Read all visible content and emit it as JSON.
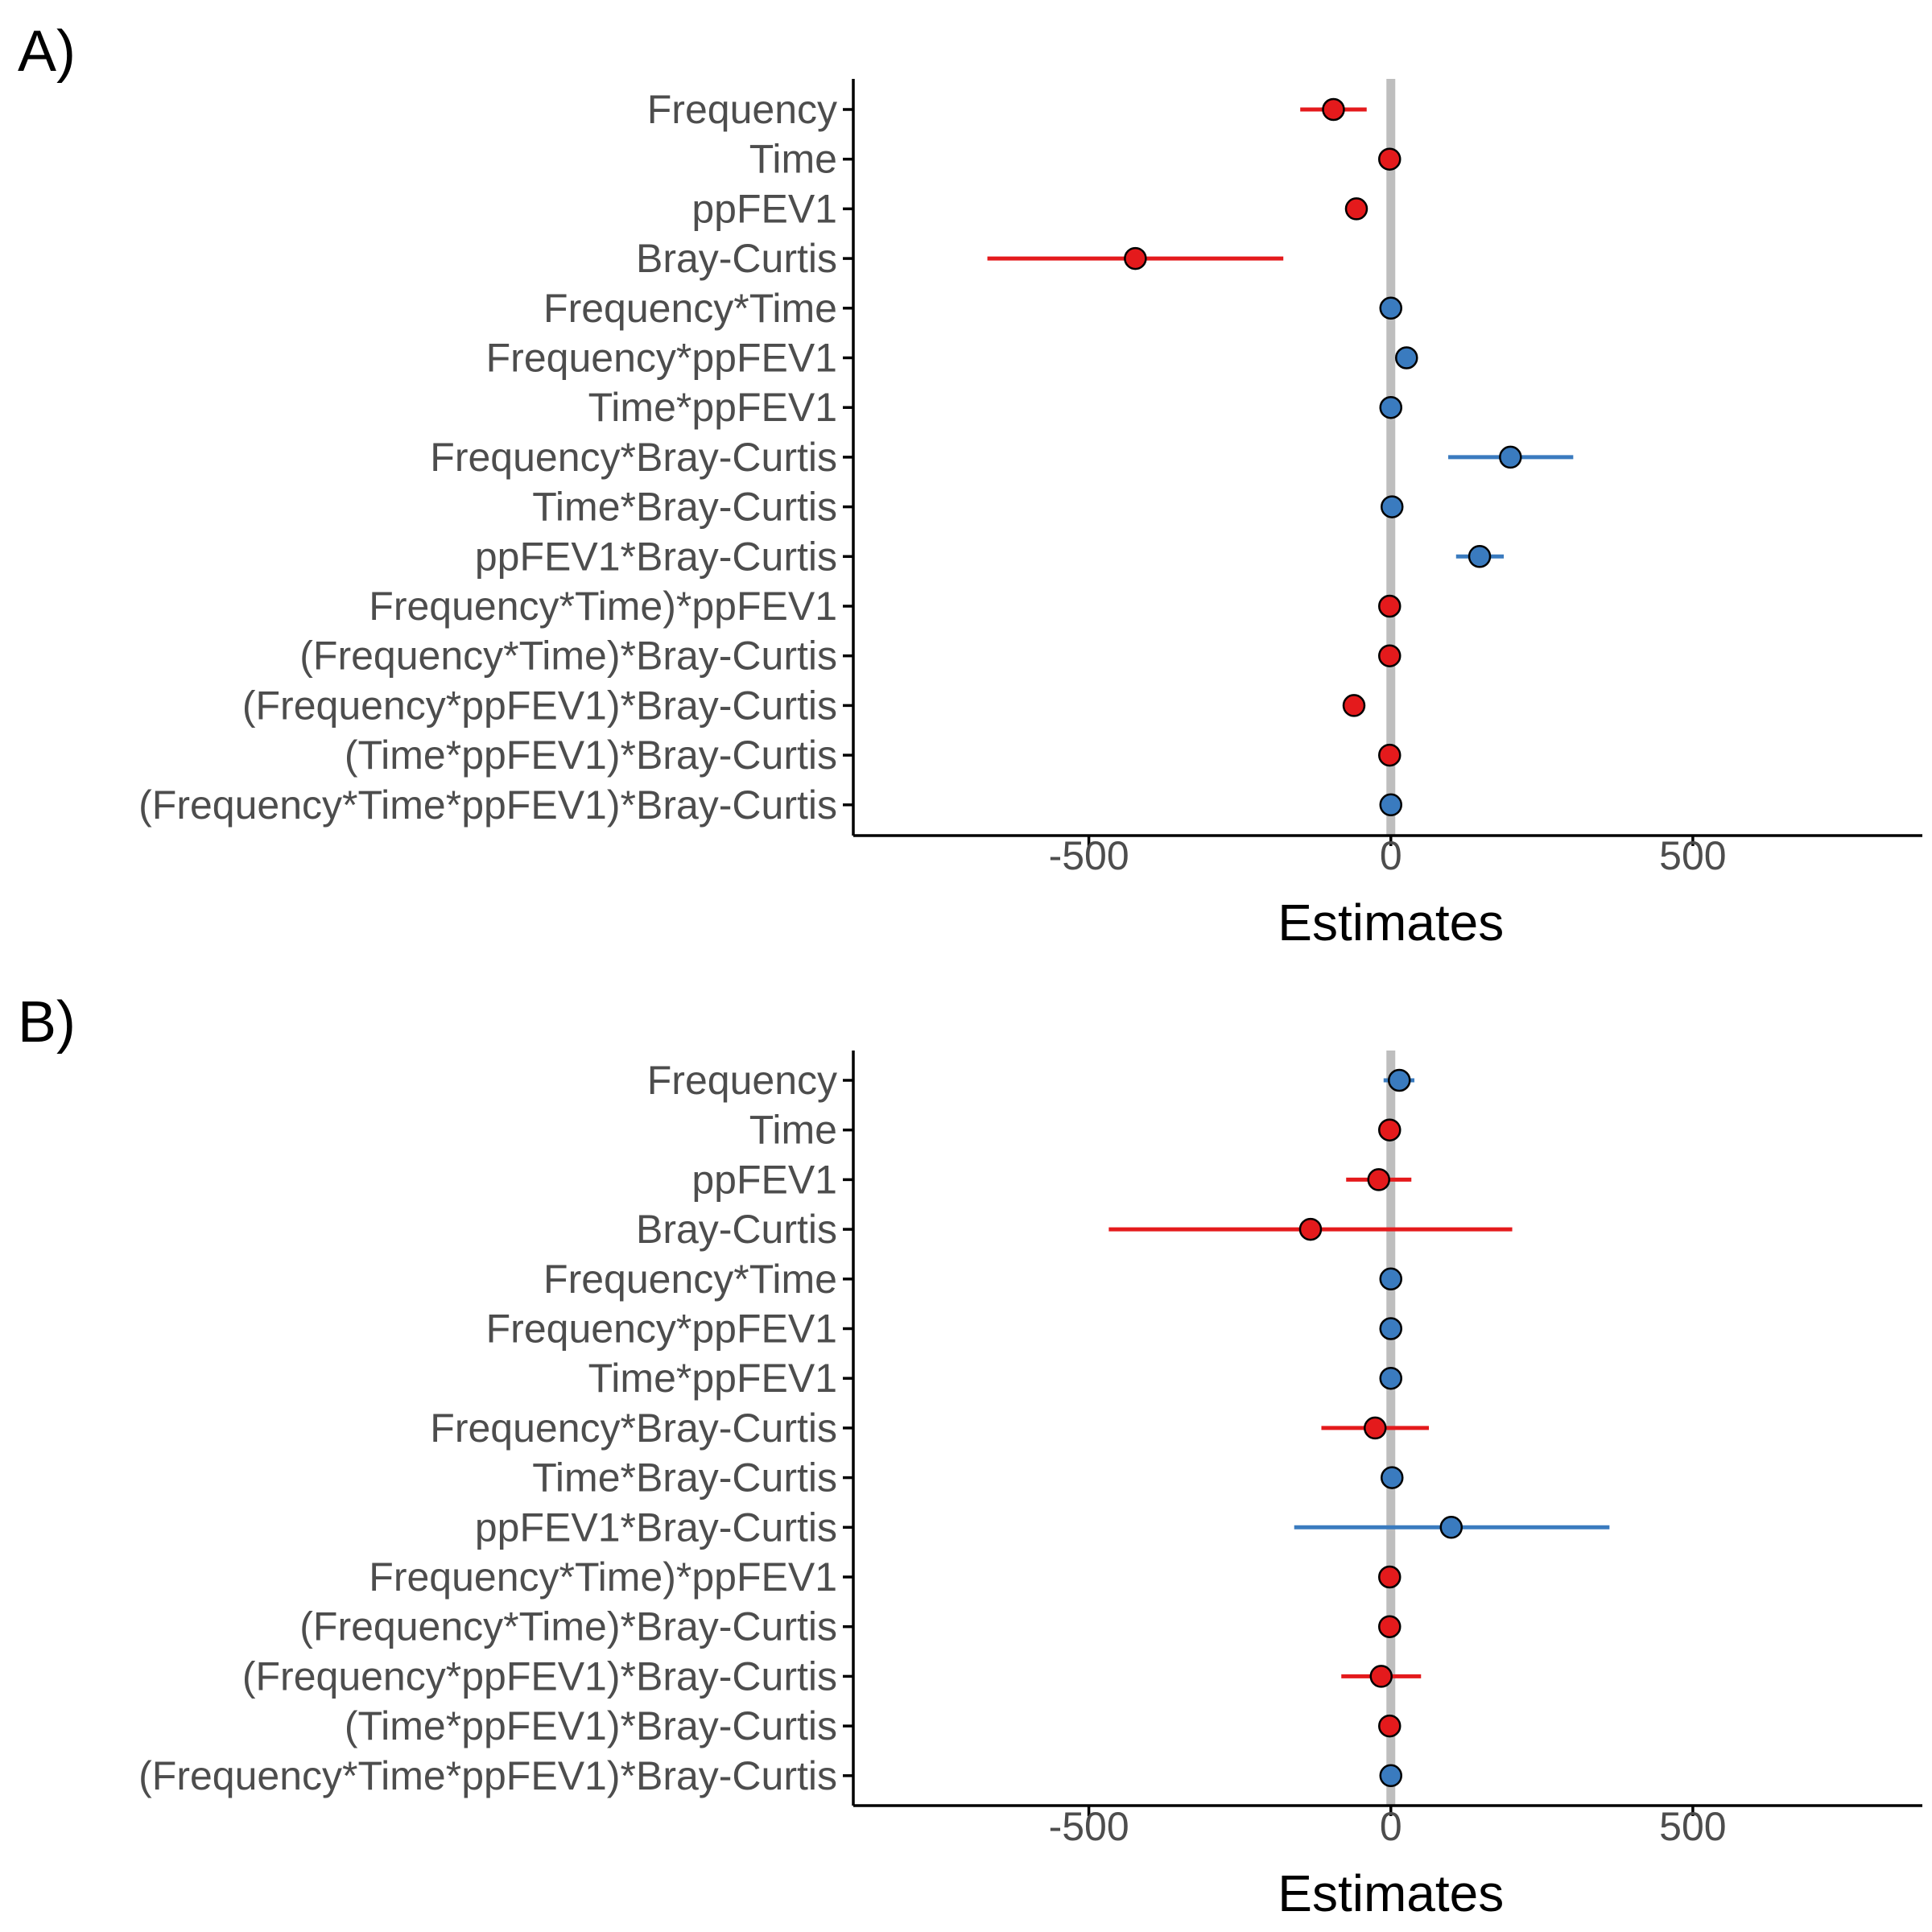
{
  "chart_data": [
    {
      "type": "forest",
      "panel_label": "A)",
      "xlabel": "Estimates",
      "xlim": [
        -890,
        880
      ],
      "xticks": [
        -500,
        0,
        500
      ],
      "xtick_labels": [
        "-500",
        "0",
        "500"
      ],
      "reference_line": 0,
      "colors": {
        "positive": "#3a7bbf",
        "negative": "#e41a1c",
        "reference": "#bebebe",
        "axis": "#000000"
      },
      "rows": [
        {
          "label": "Frequency",
          "estimate": -95,
          "low": -150,
          "high": -40,
          "sign": "negative"
        },
        {
          "label": "Time",
          "estimate": -2,
          "low": -2,
          "high": -2,
          "sign": "negative"
        },
        {
          "label": "ppFEV1",
          "estimate": -57,
          "low": -57,
          "high": -57,
          "sign": "negative"
        },
        {
          "label": "Bray-Curtis",
          "estimate": -423,
          "low": -668,
          "high": -178,
          "sign": "negative"
        },
        {
          "label": "Frequency*Time",
          "estimate": 0,
          "low": 0,
          "high": 0,
          "sign": "positive"
        },
        {
          "label": "Frequency*ppFEV1",
          "estimate": 26,
          "low": 26,
          "high": 26,
          "sign": "positive"
        },
        {
          "label": "Time*ppFEV1",
          "estimate": 0,
          "low": 0,
          "high": 0,
          "sign": "positive"
        },
        {
          "label": "Frequency*Bray-Curtis",
          "estimate": 198,
          "low": 95,
          "high": 302,
          "sign": "positive"
        },
        {
          "label": "Time*Bray-Curtis",
          "estimate": 2,
          "low": 2,
          "high": 2,
          "sign": "positive"
        },
        {
          "label": "ppFEV1*Bray-Curtis",
          "estimate": 147,
          "low": 108,
          "high": 187,
          "sign": "positive"
        },
        {
          "label": "Frequency*Time)*ppFEV1",
          "estimate": -2,
          "low": -2,
          "high": -2,
          "sign": "negative"
        },
        {
          "label": "(Frequency*Time)*Bray-Curtis",
          "estimate": -2,
          "low": -2,
          "high": -2,
          "sign": "negative"
        },
        {
          "label": "(Frequency*ppFEV1)*Bray-Curtis",
          "estimate": -61,
          "low": -61,
          "high": -61,
          "sign": "negative"
        },
        {
          "label": "(Time*ppFEV1)*Bray-Curtis",
          "estimate": -2,
          "low": -2,
          "high": -2,
          "sign": "negative"
        },
        {
          "label": "(Frequency*Time*ppFEV1)*Bray-Curtis",
          "estimate": 0,
          "low": 0,
          "high": 0,
          "sign": "positive"
        }
      ]
    },
    {
      "type": "forest",
      "panel_label": "B)",
      "xlabel": "Estimates",
      "xlim": [
        -890,
        880
      ],
      "xticks": [
        -500,
        0,
        500
      ],
      "xtick_labels": [
        "-500",
        "0",
        "500"
      ],
      "reference_line": 0,
      "colors": {
        "positive": "#3a7bbf",
        "negative": "#e41a1c",
        "reference": "#bebebe",
        "axis": "#000000"
      },
      "rows": [
        {
          "label": "Frequency",
          "estimate": 14,
          "low": -12,
          "high": 39,
          "sign": "positive"
        },
        {
          "label": "Time",
          "estimate": -2,
          "low": -2,
          "high": -2,
          "sign": "negative"
        },
        {
          "label": "ppFEV1",
          "estimate": -20,
          "low": -74,
          "high": 34,
          "sign": "negative"
        },
        {
          "label": "Bray-Curtis",
          "estimate": -133,
          "low": -467,
          "high": 201,
          "sign": "negative"
        },
        {
          "label": "Frequency*Time",
          "estimate": 0,
          "low": 0,
          "high": 0,
          "sign": "positive"
        },
        {
          "label": "Frequency*ppFEV1",
          "estimate": 0,
          "low": 0,
          "high": 0,
          "sign": "positive"
        },
        {
          "label": "Time*ppFEV1",
          "estimate": 0,
          "low": 0,
          "high": 0,
          "sign": "positive"
        },
        {
          "label": "Frequency*Bray-Curtis",
          "estimate": -26,
          "low": -115,
          "high": 63,
          "sign": "negative"
        },
        {
          "label": "Time*Bray-Curtis",
          "estimate": 2,
          "low": 2,
          "high": 2,
          "sign": "positive"
        },
        {
          "label": "ppFEV1*Bray-Curtis",
          "estimate": 100,
          "low": -160,
          "high": 362,
          "sign": "positive"
        },
        {
          "label": "Frequency*Time)*ppFEV1",
          "estimate": -2,
          "low": -2,
          "high": -2,
          "sign": "negative"
        },
        {
          "label": "(Frequency*Time)*Bray-Curtis",
          "estimate": -2,
          "low": -2,
          "high": -2,
          "sign": "negative"
        },
        {
          "label": "(Frequency*ppFEV1)*Bray-Curtis",
          "estimate": -16,
          "low": -82,
          "high": 50,
          "sign": "negative"
        },
        {
          "label": "(Time*ppFEV1)*Bray-Curtis",
          "estimate": -2,
          "low": -2,
          "high": -2,
          "sign": "negative"
        },
        {
          "label": "(Frequency*Time*ppFEV1)*Bray-Curtis",
          "estimate": 0,
          "low": 0,
          "high": 0,
          "sign": "positive"
        }
      ]
    }
  ]
}
